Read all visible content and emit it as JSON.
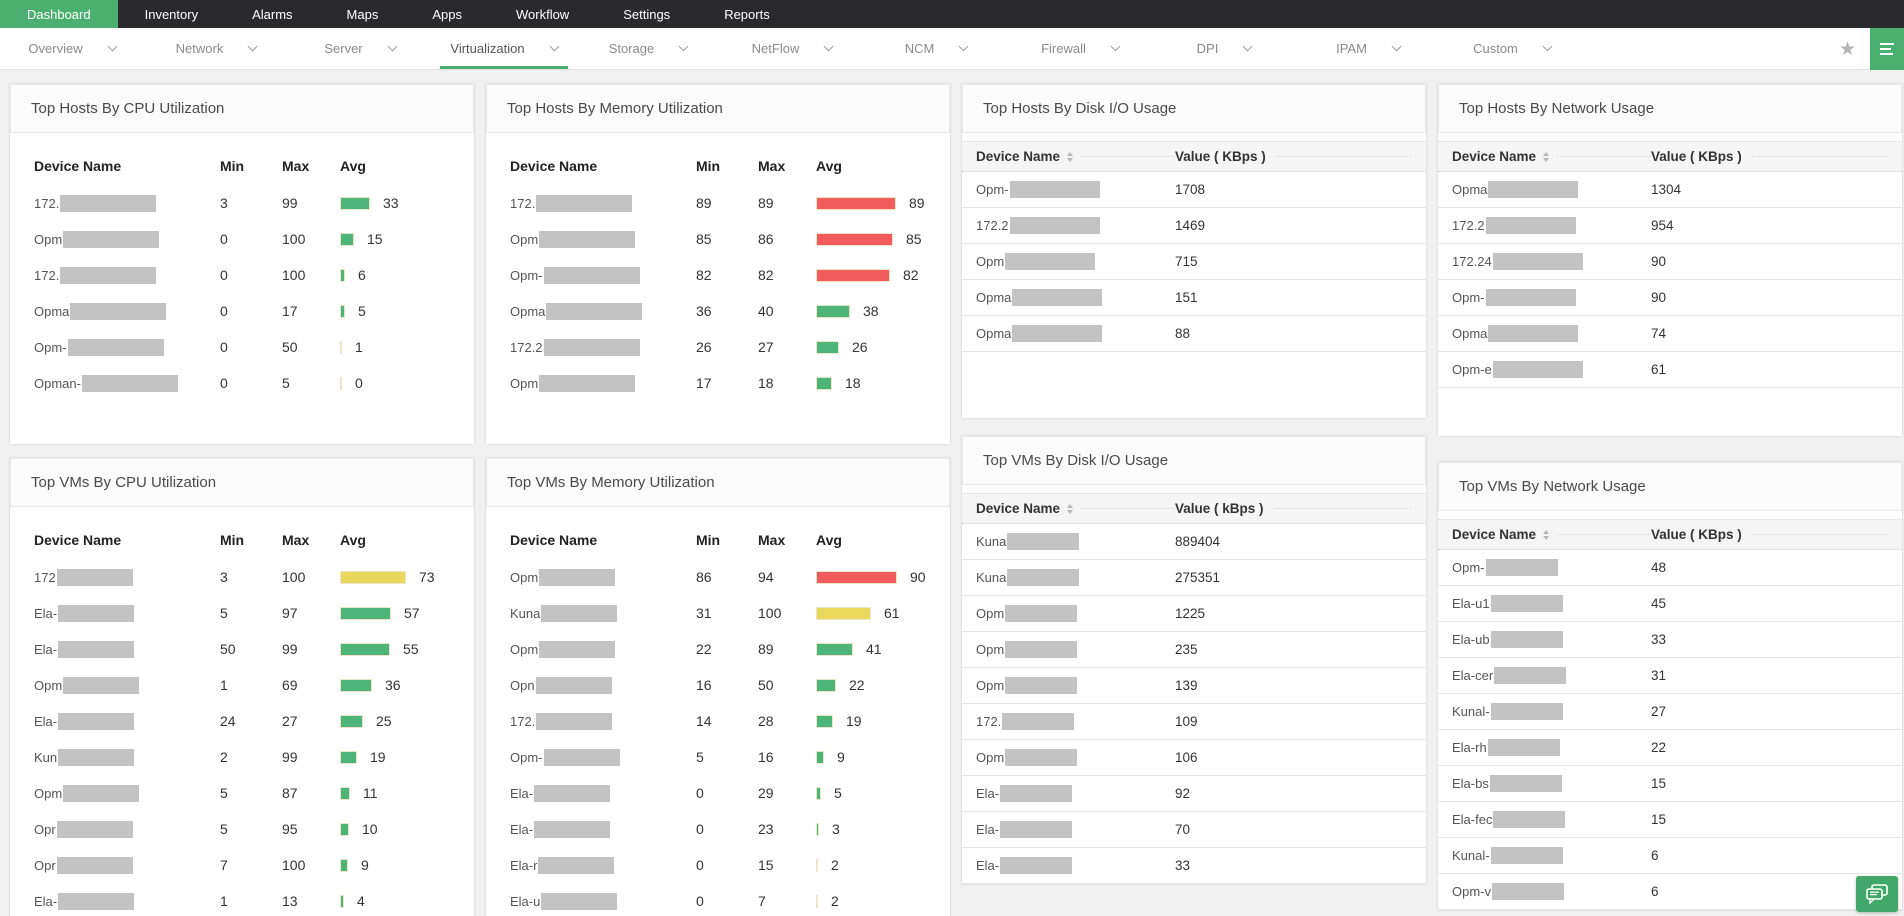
{
  "topnav": {
    "items": [
      {
        "label": "Dashboard",
        "active": true
      },
      {
        "label": "Inventory",
        "active": false
      },
      {
        "label": "Alarms",
        "active": false
      },
      {
        "label": "Maps",
        "active": false
      },
      {
        "label": "Apps",
        "active": false
      },
      {
        "label": "Workflow",
        "active": false
      },
      {
        "label": "Settings",
        "active": false
      },
      {
        "label": "Reports",
        "active": false
      }
    ]
  },
  "tabbar": {
    "tabs": [
      {
        "label": "Overview",
        "active": false
      },
      {
        "label": "Network",
        "active": false
      },
      {
        "label": "Server",
        "active": false
      },
      {
        "label": "Virtualization",
        "active": true
      },
      {
        "label": "Storage",
        "active": false
      },
      {
        "label": "NetFlow",
        "active": false
      },
      {
        "label": "NCM",
        "active": false
      },
      {
        "label": "Firewall",
        "active": false
      },
      {
        "label": "DPI",
        "active": false
      },
      {
        "label": "IPAM",
        "active": false
      },
      {
        "label": "Custom",
        "active": false
      }
    ]
  },
  "colors": {
    "accent_green": "#4bb06f",
    "bar_green": "#4cb577",
    "bar_yellow": "#e9d75e",
    "bar_red": "#f25b5b",
    "nav_bg": "#2a2a2e",
    "redact_gray": "#c3c3c3"
  },
  "panels": {
    "host_cpu": {
      "title": "Top Hosts By CPU Utilization",
      "columns": [
        "Device Name",
        "Min",
        "Max",
        "Avg"
      ],
      "rows": [
        {
          "device": "172.",
          "min": 3,
          "max": 99,
          "avg": 33,
          "level": "green"
        },
        {
          "device": "Opm",
          "min": 0,
          "max": 100,
          "avg": 15,
          "level": "green"
        },
        {
          "device": "172.",
          "min": 0,
          "max": 100,
          "avg": 6,
          "level": "green"
        },
        {
          "device": "Opma",
          "min": 0,
          "max": 17,
          "avg": 5,
          "level": "green"
        },
        {
          "device": "Opm-",
          "min": 0,
          "max": 50,
          "avg": 1,
          "level": "green"
        },
        {
          "device": "Opman-",
          "min": 0,
          "max": 5,
          "avg": 0,
          "level": "green"
        }
      ]
    },
    "host_mem": {
      "title": "Top Hosts By Memory Utilization",
      "columns": [
        "Device Name",
        "Min",
        "Max",
        "Avg"
      ],
      "rows": [
        {
          "device": "172.",
          "min": 89,
          "max": 89,
          "avg": 89,
          "level": "red"
        },
        {
          "device": "Opm",
          "min": 85,
          "max": 86,
          "avg": 85,
          "level": "red"
        },
        {
          "device": "Opm-",
          "min": 82,
          "max": 82,
          "avg": 82,
          "level": "red"
        },
        {
          "device": "Opma",
          "min": 36,
          "max": 40,
          "avg": 38,
          "level": "green"
        },
        {
          "device": "172.2",
          "min": 26,
          "max": 27,
          "avg": 26,
          "level": "green"
        },
        {
          "device": "Opm",
          "min": 17,
          "max": 18,
          "avg": 18,
          "level": "green"
        }
      ]
    },
    "host_disk": {
      "title": "Top Hosts By Disk I/O Usage",
      "columns": [
        "Device Name",
        "Value ( KBps )"
      ],
      "rows": [
        {
          "device": "Opm-",
          "value": "1708"
        },
        {
          "device": "172.2",
          "value": "1469"
        },
        {
          "device": "Opm",
          "value": "715"
        },
        {
          "device": "Opma",
          "value": "151"
        },
        {
          "device": "Opma",
          "value": "88"
        }
      ]
    },
    "host_net": {
      "title": "Top Hosts By Network Usage",
      "columns": [
        "Device Name",
        "Value ( KBps )"
      ],
      "rows": [
        {
          "device": "Opma",
          "value": "1304"
        },
        {
          "device": "172.2",
          "value": "954"
        },
        {
          "device": "172.24",
          "value": "90"
        },
        {
          "device": "Opm-",
          "value": "90"
        },
        {
          "device": "Opma",
          "value": "74"
        },
        {
          "device": "Opm-e",
          "value": "61"
        }
      ]
    },
    "vm_cpu": {
      "title": "Top VMs By CPU Utilization",
      "columns": [
        "Device Name",
        "Min",
        "Max",
        "Avg"
      ],
      "rows": [
        {
          "device": "172",
          "min": 3,
          "max": 100,
          "avg": 73,
          "level": "yellow"
        },
        {
          "device": "Ela-",
          "min": 5,
          "max": 97,
          "avg": 57,
          "level": "green"
        },
        {
          "device": "Ela-",
          "min": 50,
          "max": 99,
          "avg": 55,
          "level": "green"
        },
        {
          "device": "Opm",
          "min": 1,
          "max": 69,
          "avg": 36,
          "level": "green"
        },
        {
          "device": "Ela-",
          "min": 24,
          "max": 27,
          "avg": 25,
          "level": "green"
        },
        {
          "device": "Kun",
          "min": 2,
          "max": 99,
          "avg": 19,
          "level": "green"
        },
        {
          "device": "Opm",
          "min": 5,
          "max": 87,
          "avg": 11,
          "level": "green"
        },
        {
          "device": "Opr",
          "min": 5,
          "max": 95,
          "avg": 10,
          "level": "green"
        },
        {
          "device": "Opr",
          "min": 7,
          "max": 100,
          "avg": 9,
          "level": "green"
        },
        {
          "device": "Ela-",
          "min": 1,
          "max": 13,
          "avg": 4,
          "level": "green"
        }
      ]
    },
    "vm_mem": {
      "title": "Top VMs By Memory Utilization",
      "columns": [
        "Device Name",
        "Min",
        "Max",
        "Avg"
      ],
      "rows": [
        {
          "device": "Opm",
          "min": 86,
          "max": 94,
          "avg": 90,
          "level": "red"
        },
        {
          "device": "Kuna",
          "min": 31,
          "max": 100,
          "avg": 61,
          "level": "yellow"
        },
        {
          "device": "Opm",
          "min": 22,
          "max": 89,
          "avg": 41,
          "level": "green"
        },
        {
          "device": "Opn",
          "min": 16,
          "max": 50,
          "avg": 22,
          "level": "green"
        },
        {
          "device": "172.",
          "min": 14,
          "max": 28,
          "avg": 19,
          "level": "green"
        },
        {
          "device": "Opm-",
          "min": 5,
          "max": 16,
          "avg": 9,
          "level": "green"
        },
        {
          "device": "Ela-",
          "min": 0,
          "max": 29,
          "avg": 5,
          "level": "green"
        },
        {
          "device": "Ela-",
          "min": 0,
          "max": 23,
          "avg": 3,
          "level": "green"
        },
        {
          "device": "Ela-r",
          "min": 0,
          "max": 15,
          "avg": 2,
          "level": "green"
        },
        {
          "device": "Ela-u",
          "min": 0,
          "max": 7,
          "avg": 2,
          "level": "green"
        }
      ]
    },
    "vm_disk": {
      "title": "Top VMs By Disk I/O Usage",
      "columns": [
        "Device Name",
        "Value ( kBps )"
      ],
      "rows": [
        {
          "device": "Kuna",
          "value": "889404"
        },
        {
          "device": "Kuna",
          "value": "275351"
        },
        {
          "device": "Opm",
          "value": "1225"
        },
        {
          "device": "Opm",
          "value": "235"
        },
        {
          "device": "Opm",
          "value": "139"
        },
        {
          "device": "172.",
          "value": "109"
        },
        {
          "device": "Opm",
          "value": "106"
        },
        {
          "device": "Ela-",
          "value": "92"
        },
        {
          "device": "Ela-",
          "value": "70"
        },
        {
          "device": "Ela-",
          "value": "33"
        }
      ]
    },
    "vm_net": {
      "title": "Top VMs By Network Usage",
      "columns": [
        "Device Name",
        "Value ( KBps )"
      ],
      "rows": [
        {
          "device": "Opm-",
          "value": "48"
        },
        {
          "device": "Ela-u1",
          "value": "45"
        },
        {
          "device": "Ela-ub",
          "value": "33"
        },
        {
          "device": "Ela-cer",
          "value": "31"
        },
        {
          "device": "Kunal-",
          "value": "27"
        },
        {
          "device": "Ela-rh",
          "value": "22"
        },
        {
          "device": "Ela-bs",
          "value": "15"
        },
        {
          "device": "Ela-fec",
          "value": "15"
        },
        {
          "device": "Kunal-",
          "value": "6"
        },
        {
          "device": "Opm-v",
          "value": "6"
        }
      ]
    }
  }
}
